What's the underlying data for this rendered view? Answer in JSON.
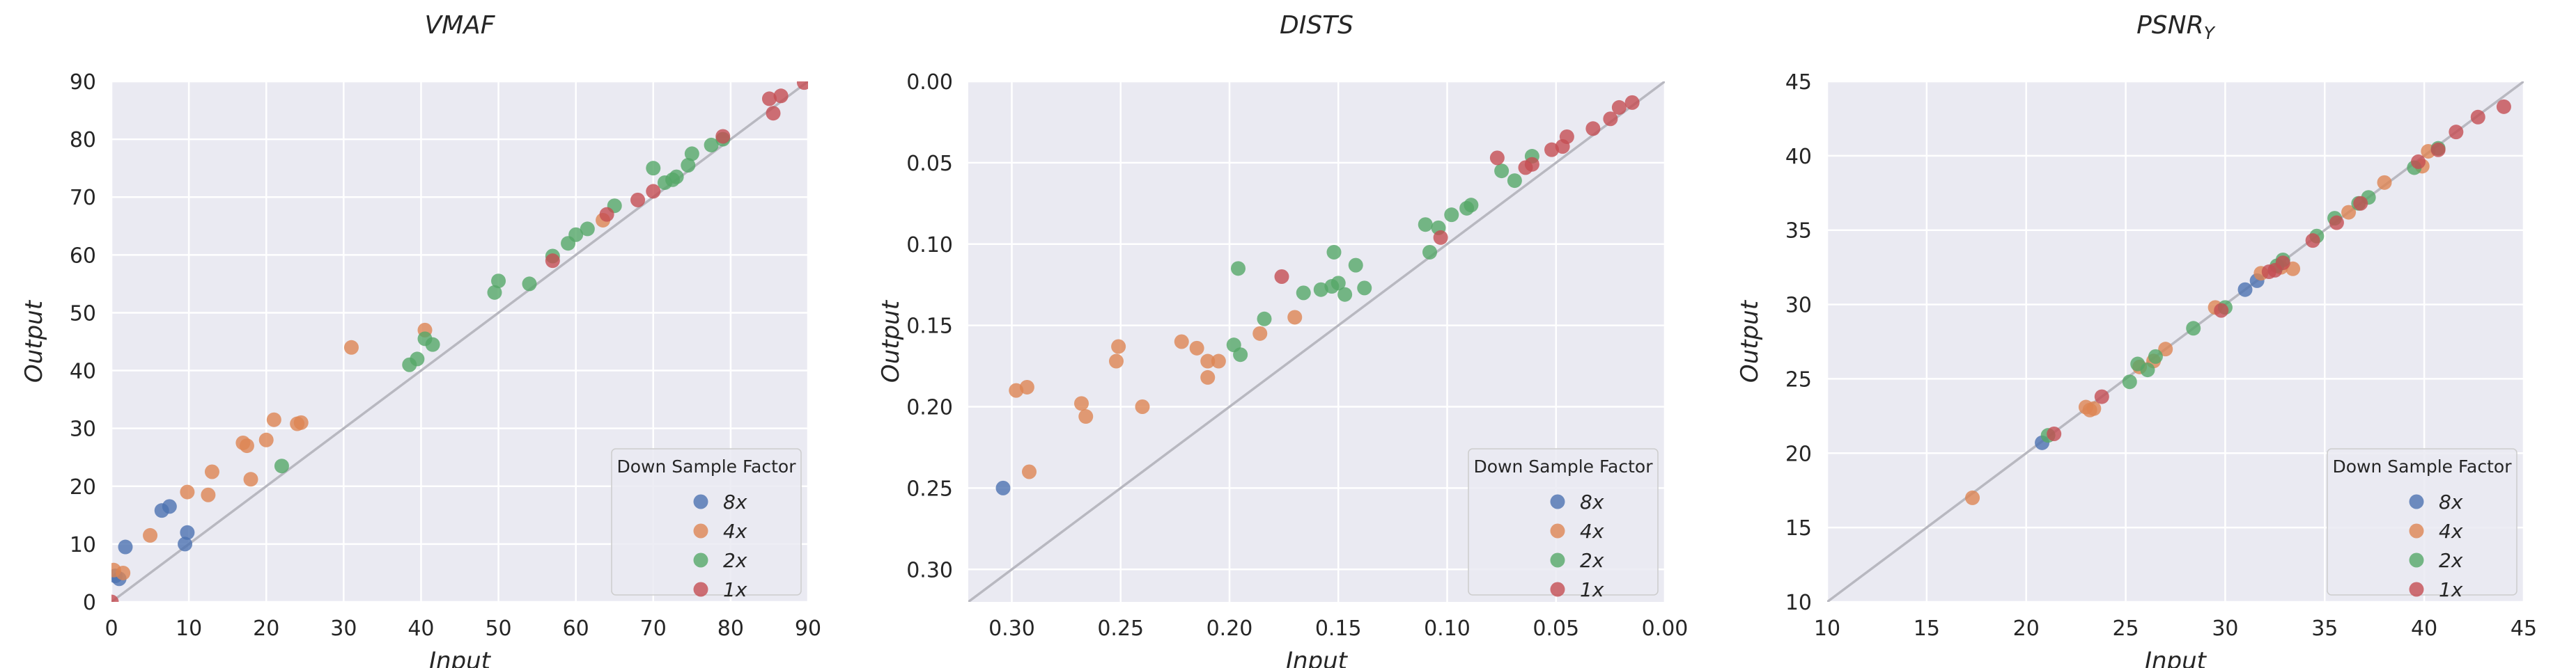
{
  "colors": {
    "plot_bg": "#EAEAF2",
    "grid": "#FFFFFF",
    "diagonal": "#B8B8C0",
    "series": {
      "8x": "#4C72B0",
      "4x": "#DD8452",
      "2x": "#55A868",
      "1x": "#C44E52"
    }
  },
  "legend": {
    "title": "Down Sample Factor",
    "items": [
      "8x",
      "4x",
      "2x",
      "1x"
    ],
    "placement": "lower-right"
  },
  "chart_data": [
    {
      "type": "scatter",
      "title": "VMAF",
      "xlabel": "Input",
      "ylabel": "Output",
      "xlim": [
        0,
        90
      ],
      "ylim": [
        0,
        90
      ],
      "x_reversed": false,
      "y_reversed": false,
      "xticks": [
        0,
        10,
        20,
        30,
        40,
        50,
        60,
        70,
        80,
        90
      ],
      "xtick_labels": [
        "0",
        "10",
        "20",
        "30",
        "40",
        "50",
        "60",
        "70",
        "80",
        "90"
      ],
      "yticks": [
        0,
        10,
        20,
        30,
        40,
        50,
        60,
        70,
        80,
        90
      ],
      "ytick_labels": [
        "0",
        "10",
        "20",
        "30",
        "40",
        "50",
        "60",
        "70",
        "80",
        "90"
      ],
      "series": [
        {
          "name": "8x",
          "points": [
            [
              0.5,
              4.5
            ],
            [
              1,
              4
            ],
            [
              1.8,
              9.5
            ],
            [
              6.5,
              15.8
            ],
            [
              7.5,
              16.5
            ],
            [
              9.5,
              10
            ],
            [
              9.8,
              12
            ]
          ]
        },
        {
          "name": "4x",
          "points": [
            [
              0.3,
              5.5
            ],
            [
              1.5,
              5
            ],
            [
              5,
              11.5
            ],
            [
              9.8,
              19
            ],
            [
              12.5,
              18.5
            ],
            [
              13,
              22.5
            ],
            [
              17,
              27.5
            ],
            [
              17.5,
              27
            ],
            [
              18,
              21.2
            ],
            [
              20,
              28
            ],
            [
              21,
              31.5
            ],
            [
              24,
              30.8
            ],
            [
              24.5,
              31
            ],
            [
              31,
              44
            ],
            [
              40.5,
              47
            ],
            [
              63.5,
              66
            ]
          ]
        },
        {
          "name": "2x",
          "points": [
            [
              22,
              23.5
            ],
            [
              38.5,
              41
            ],
            [
              39.5,
              42
            ],
            [
              40.5,
              45.5
            ],
            [
              41.5,
              44.5
            ],
            [
              49.5,
              53.5
            ],
            [
              50,
              55.5
            ],
            [
              54,
              55
            ],
            [
              57,
              59.8
            ],
            [
              59,
              62
            ],
            [
              60,
              63.5
            ],
            [
              61.5,
              64.5
            ],
            [
              65,
              68.5
            ],
            [
              70,
              75
            ],
            [
              71.5,
              72.5
            ],
            [
              72.5,
              73
            ],
            [
              73,
              73.5
            ],
            [
              74.5,
              75.5
            ],
            [
              75,
              77.5
            ],
            [
              77.5,
              79
            ],
            [
              79,
              80
            ]
          ]
        },
        {
          "name": "1x",
          "points": [
            [
              0,
              0
            ],
            [
              57,
              59
            ],
            [
              64,
              67
            ],
            [
              68,
              69.5
            ],
            [
              70,
              71
            ],
            [
              79,
              80.5
            ],
            [
              85,
              87
            ],
            [
              85.5,
              84.5
            ],
            [
              86.5,
              87.5
            ],
            [
              89.5,
              89.8
            ]
          ]
        }
      ]
    },
    {
      "type": "scatter",
      "title": "DISTS",
      "xlabel": "Input",
      "ylabel": "Output",
      "xlim": [
        0.32,
        0.0
      ],
      "ylim": [
        0.32,
        0.0
      ],
      "x_reversed": true,
      "y_reversed": true,
      "xticks": [
        0.3,
        0.25,
        0.2,
        0.15,
        0.1,
        0.05,
        0.0
      ],
      "xtick_labels": [
        "0.30",
        "0.25",
        "0.20",
        "0.15",
        "0.10",
        "0.05",
        "0.00"
      ],
      "yticks": [
        0.0,
        0.05,
        0.1,
        0.15,
        0.2,
        0.25,
        0.3
      ],
      "ytick_labels": [
        "0.00",
        "0.05",
        "0.10",
        "0.15",
        "0.20",
        "0.25",
        "0.30"
      ],
      "series": [
        {
          "name": "8x",
          "points": [
            [
              0.304,
              0.25
            ]
          ]
        },
        {
          "name": "4x",
          "points": [
            [
              0.298,
              0.19
            ],
            [
              0.293,
              0.188
            ],
            [
              0.292,
              0.24
            ],
            [
              0.268,
              0.198
            ],
            [
              0.266,
              0.206
            ],
            [
              0.252,
              0.172
            ],
            [
              0.251,
              0.163
            ],
            [
              0.24,
              0.2
            ],
            [
              0.222,
              0.16
            ],
            [
              0.215,
              0.164
            ],
            [
              0.21,
              0.172
            ],
            [
              0.21,
              0.182
            ],
            [
              0.205,
              0.172
            ],
            [
              0.186,
              0.155
            ],
            [
              0.17,
              0.145
            ]
          ]
        },
        {
          "name": "2x",
          "points": [
            [
              0.198,
              0.162
            ],
            [
              0.196,
              0.115
            ],
            [
              0.195,
              0.168
            ],
            [
              0.184,
              0.146
            ],
            [
              0.166,
              0.13
            ],
            [
              0.158,
              0.128
            ],
            [
              0.153,
              0.126
            ],
            [
              0.152,
              0.105
            ],
            [
              0.15,
              0.124
            ],
            [
              0.147,
              0.131
            ],
            [
              0.142,
              0.113
            ],
            [
              0.138,
              0.127
            ],
            [
              0.11,
              0.088
            ],
            [
              0.108,
              0.105
            ],
            [
              0.104,
              0.09
            ],
            [
              0.098,
              0.082
            ],
            [
              0.091,
              0.078
            ],
            [
              0.089,
              0.076
            ],
            [
              0.075,
              0.055
            ],
            [
              0.069,
              0.061
            ],
            [
              0.061,
              0.046
            ]
          ]
        },
        {
          "name": "1x",
          "points": [
            [
              0.176,
              0.12
            ],
            [
              0.103,
              0.096
            ],
            [
              0.077,
              0.047
            ],
            [
              0.064,
              0.053
            ],
            [
              0.061,
              0.051
            ],
            [
              0.052,
              0.042
            ],
            [
              0.047,
              0.04
            ],
            [
              0.045,
              0.034
            ],
            [
              0.033,
              0.029
            ],
            [
              0.025,
              0.023
            ],
            [
              0.021,
              0.016
            ],
            [
              0.015,
              0.013
            ]
          ]
        }
      ]
    },
    {
      "type": "scatter",
      "title": "PSNR",
      "title_subscript": "Y",
      "xlabel": "Input",
      "ylabel": "Output",
      "xlim": [
        10,
        45
      ],
      "ylim": [
        10,
        45
      ],
      "x_reversed": false,
      "y_reversed": false,
      "xticks": [
        10,
        15,
        20,
        25,
        30,
        35,
        40,
        45
      ],
      "xtick_labels": [
        "10",
        "15",
        "20",
        "25",
        "30",
        "35",
        "40",
        "45"
      ],
      "yticks": [
        10,
        15,
        20,
        25,
        30,
        35,
        40,
        45
      ],
      "ytick_labels": [
        "10",
        "15",
        "20",
        "25",
        "30",
        "35",
        "40",
        "45"
      ],
      "series": [
        {
          "name": "8x",
          "points": [
            [
              20.8,
              20.7
            ],
            [
              31,
              31
            ],
            [
              31.6,
              31.6
            ]
          ]
        },
        {
          "name": "4x",
          "points": [
            [
              17.3,
              17
            ],
            [
              23,
              23.1
            ],
            [
              23.2,
              22.9
            ],
            [
              23.4,
              23
            ],
            [
              25.7,
              25.8
            ],
            [
              26.4,
              26.2
            ],
            [
              27,
              27
            ],
            [
              29.5,
              29.8
            ],
            [
              31.8,
              32.1
            ],
            [
              32.8,
              32.5
            ],
            [
              33.4,
              32.4
            ],
            [
              36.2,
              36.2
            ],
            [
              38,
              38.2
            ],
            [
              39.9,
              39.3
            ],
            [
              40.2,
              40.3
            ]
          ]
        },
        {
          "name": "2x",
          "points": [
            [
              21.1,
              21.2
            ],
            [
              25.2,
              24.8
            ],
            [
              25.6,
              26
            ],
            [
              26.1,
              25.6
            ],
            [
              26.5,
              26.5
            ],
            [
              28.4,
              28.4
            ],
            [
              30,
              29.8
            ],
            [
              32.6,
              32.6
            ],
            [
              32.9,
              33
            ],
            [
              34.6,
              34.6
            ],
            [
              35.5,
              35.8
            ],
            [
              36.7,
              36.8
            ],
            [
              37.2,
              37.2
            ],
            [
              39.5,
              39.2
            ],
            [
              40.7,
              40.5
            ]
          ]
        },
        {
          "name": "1x",
          "points": [
            [
              21.4,
              21.3
            ],
            [
              23.8,
              23.8
            ],
            [
              29.8,
              29.6
            ],
            [
              32.2,
              32.2
            ],
            [
              32.5,
              32.3
            ],
            [
              32.9,
              32.8
            ],
            [
              34.4,
              34.3
            ],
            [
              35.6,
              35.5
            ],
            [
              36.8,
              36.8
            ],
            [
              39.7,
              39.6
            ],
            [
              40.7,
              40.4
            ],
            [
              41.6,
              41.6
            ],
            [
              42.7,
              42.6
            ],
            [
              44,
              43.3
            ]
          ]
        }
      ]
    }
  ]
}
